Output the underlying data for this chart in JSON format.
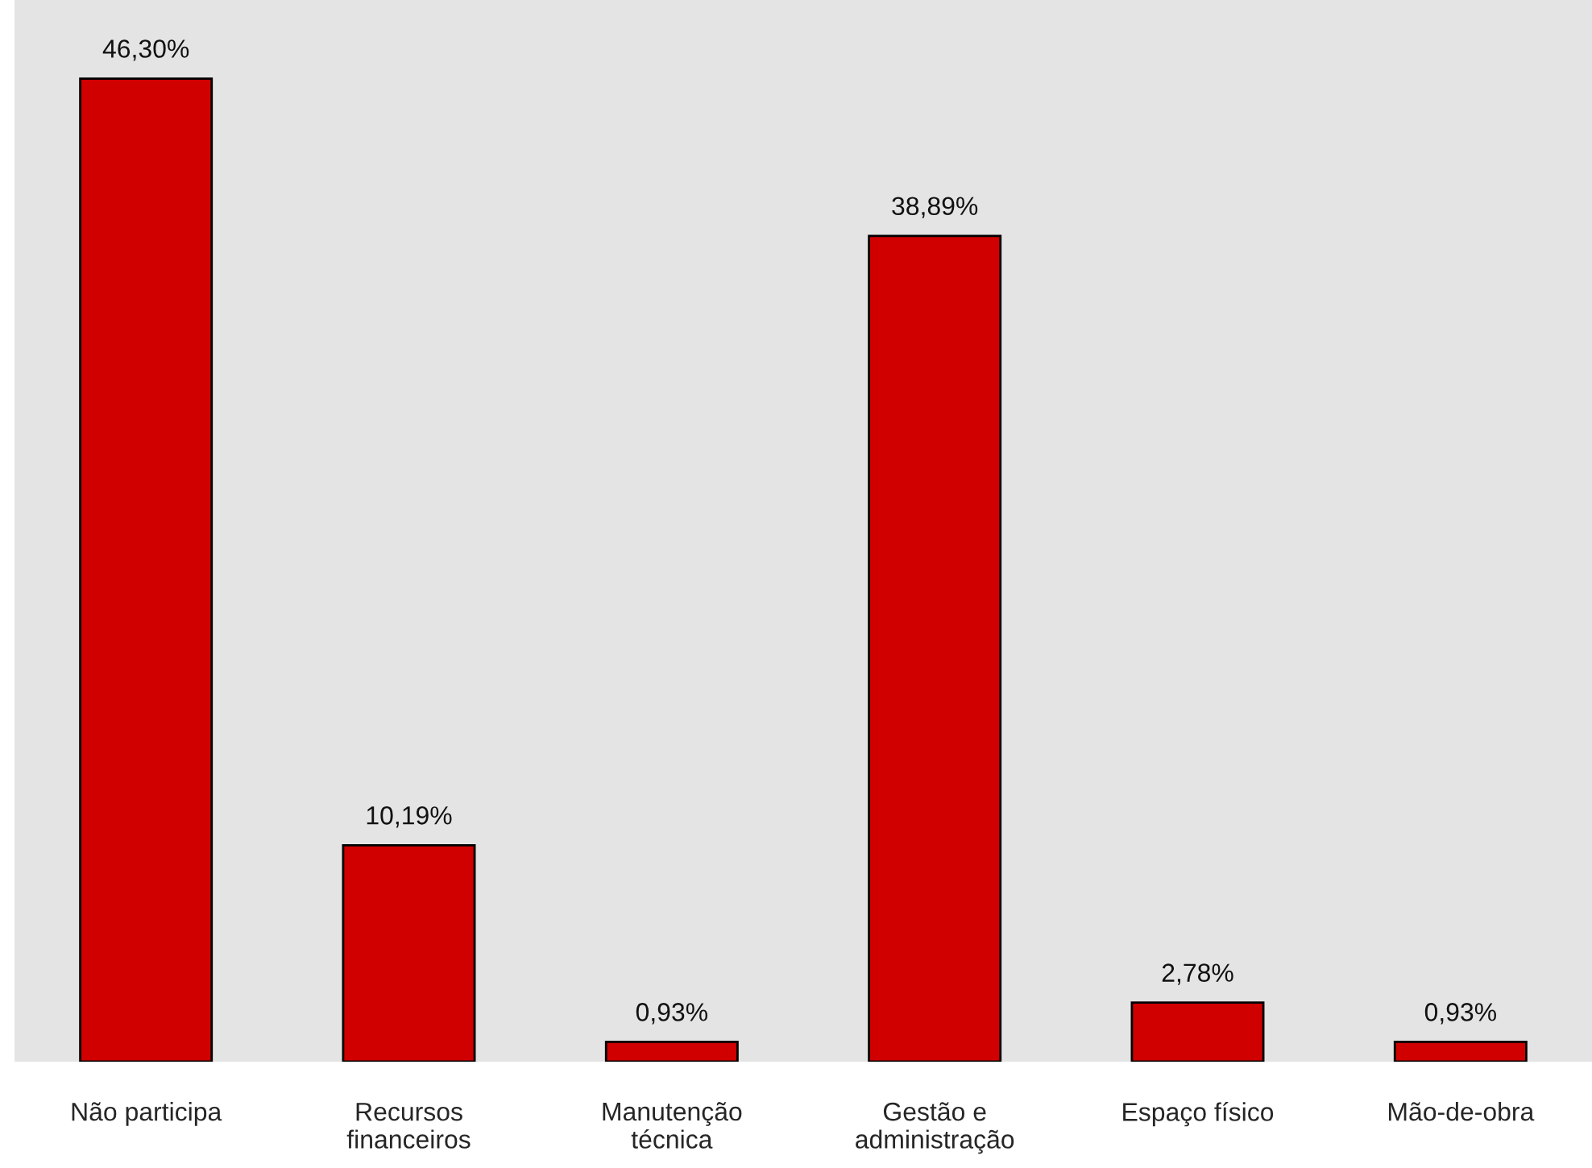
{
  "chart_data": {
    "type": "bar",
    "categories": [
      "Não participa",
      "Recursos\nfinanceiros",
      "Manutenção\ntécnica",
      "Gestão e\nadministração",
      "Espaço físico",
      "Mão-de-obra"
    ],
    "values": [
      46.3,
      10.19,
      0.93,
      38.89,
      2.78,
      0.93
    ],
    "value_labels": [
      "46,30%",
      "10,19%",
      "0,93%",
      "38,89%",
      "2,78%",
      "0,93%"
    ],
    "color": "#d00000",
    "ylim": [
      0,
      50
    ],
    "tick_labels": "x",
    "grid": false,
    "legend": false
  }
}
